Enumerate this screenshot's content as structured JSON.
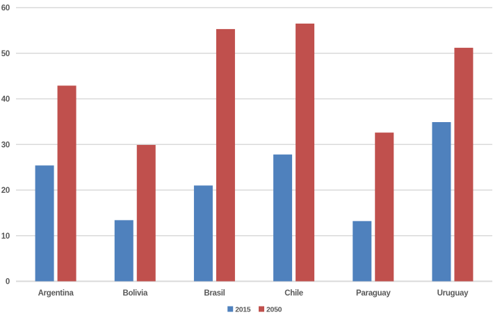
{
  "chart_data": {
    "type": "bar",
    "title": "",
    "xlabel": "",
    "ylabel": "",
    "categories": [
      "Argentina",
      "Bolivia",
      "Brasil",
      "Chile",
      "Paraguay",
      "Uruguay"
    ],
    "series": [
      {
        "name": "2015",
        "color": "#4F81BD",
        "values": [
          25.4,
          13.4,
          21.0,
          27.8,
          13.2,
          34.9
        ]
      },
      {
        "name": "2050",
        "color": "#C0504D",
        "values": [
          42.9,
          29.9,
          55.3,
          56.5,
          32.6,
          51.2
        ]
      }
    ],
    "ylim": [
      0,
      60
    ],
    "yticks": [
      0,
      10,
      20,
      30,
      40,
      50,
      60
    ],
    "grid": true,
    "legend_position": "bottom-center",
    "colors": {
      "gridline": "#D9D9D9",
      "axis_line": "#D9D9D9",
      "tick_text": "#595959",
      "background": "#FFFFFF"
    }
  }
}
